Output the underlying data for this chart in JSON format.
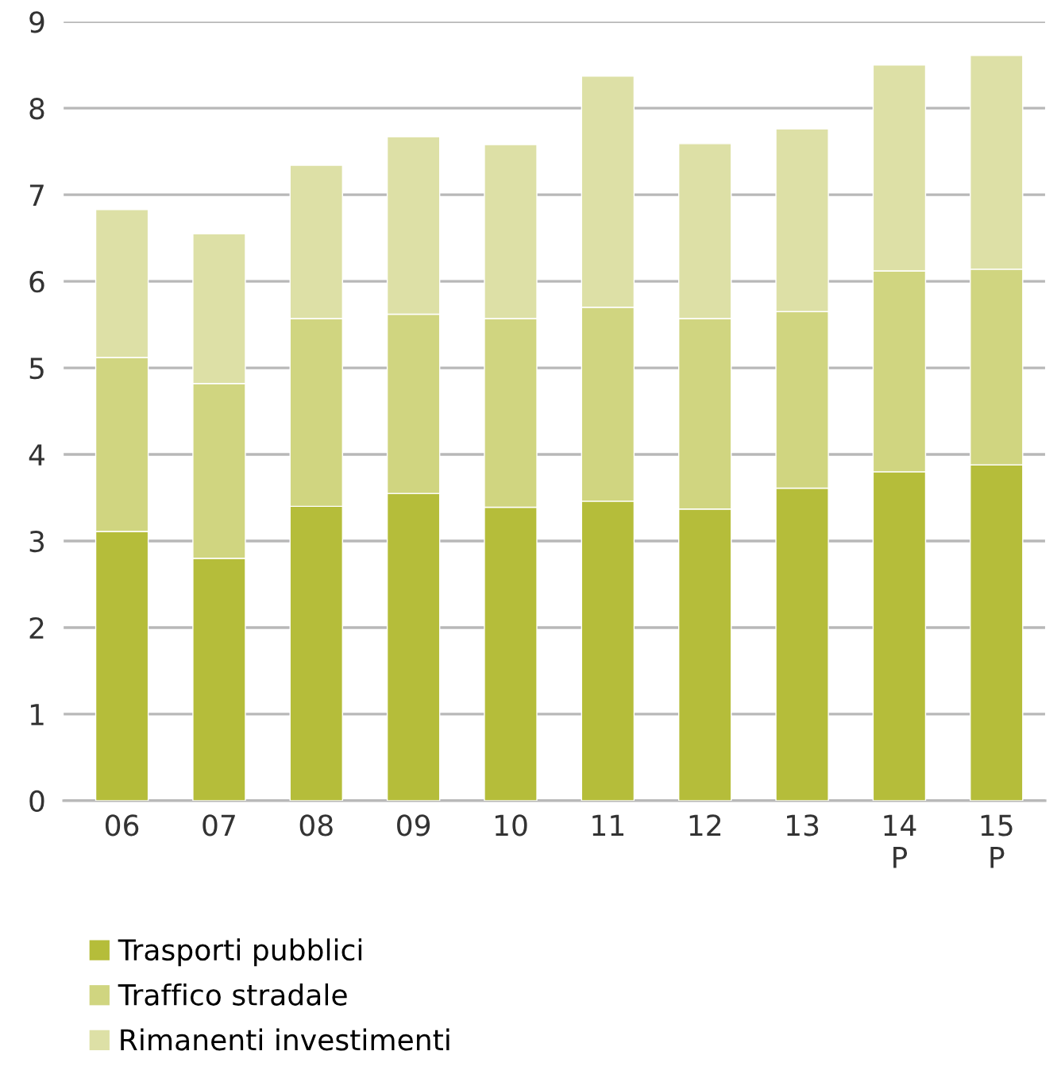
{
  "chart_data": {
    "type": "bar",
    "stacked": true,
    "categories": [
      "06",
      "07",
      "08",
      "09",
      "10",
      "11",
      "12",
      "13",
      "14\nP",
      "15\nP"
    ],
    "series": [
      {
        "name": "Trasporti pubblici",
        "color": "#b5bd3a",
        "values": [
          3.11,
          2.8,
          3.4,
          3.55,
          3.39,
          3.46,
          3.37,
          3.61,
          3.8,
          3.88
        ]
      },
      {
        "name": "Traffico stradale",
        "color": "#d0d580",
        "values": [
          2.01,
          2.02,
          2.17,
          2.07,
          2.18,
          2.24,
          2.2,
          2.04,
          2.32,
          2.26
        ]
      },
      {
        "name": "Rimanenti investimenti",
        "color": "#dde0a6",
        "values": [
          1.71,
          1.73,
          1.77,
          2.05,
          2.01,
          2.67,
          2.02,
          2.11,
          2.38,
          2.47
        ]
      }
    ],
    "ylim": [
      0,
      9
    ],
    "yticks": [
      0,
      1,
      2,
      3,
      4,
      5,
      6,
      7,
      8,
      9
    ],
    "grid": "y",
    "legend": "bottom left"
  }
}
